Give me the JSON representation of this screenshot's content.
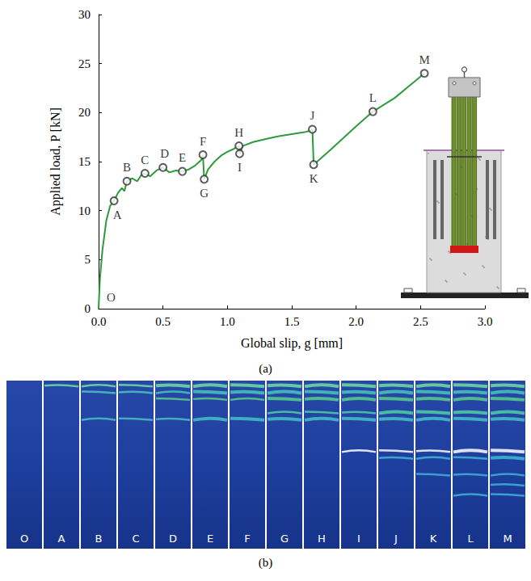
{
  "chart_data": {
    "type": "line",
    "caption": "(a)",
    "xlabel": "Global slip, g [mm]",
    "ylabel": "Applied load, P [kN]",
    "color": "#2e9a3c",
    "grid": false,
    "xlim": [
      0,
      3
    ],
    "ylim": [
      0,
      30
    ],
    "xticks": [
      {
        "value": 0,
        "label": "0.0"
      },
      0.5,
      {
        "value": 1,
        "label": "1.0"
      },
      1.5,
      {
        "value": 2,
        "label": "2.0"
      },
      2.5,
      {
        "value": 3,
        "label": "3.0"
      }
    ],
    "yticks": [
      0,
      5,
      10,
      15,
      20,
      25,
      30
    ],
    "x": [
      0,
      0.01,
      0.03,
      0.06,
      0.09,
      0.12,
      0.15,
      0.18,
      0.2,
      0.22,
      0.26,
      0.3,
      0.33,
      0.36,
      0.4,
      0.45,
      0.5,
      0.55,
      0.6,
      0.65,
      0.7,
      0.75,
      0.8,
      0.81,
      0.82,
      0.85,
      0.9,
      0.95,
      1.0,
      1.05,
      1.09,
      1.095,
      1.12,
      1.2,
      1.3,
      1.4,
      1.5,
      1.6,
      1.65,
      1.66,
      1.67,
      1.8,
      2.0,
      2.13,
      2.3,
      2.53
    ],
    "values": [
      0,
      3,
      6,
      9,
      10.5,
      11,
      11.8,
      12.3,
      12.0,
      13.0,
      13.3,
      13.0,
      13.6,
      13.8,
      13.5,
      14.1,
      14.4,
      13.9,
      14.1,
      14.0,
      14.2,
      14.6,
      15.2,
      15.7,
      13.2,
      14.2,
      15.0,
      15.6,
      16.0,
      16.3,
      16.6,
      15.8,
      16.6,
      17.0,
      17.3,
      17.6,
      17.8,
      18.0,
      18.2,
      18.3,
      14.7,
      16.2,
      18.6,
      20.1,
      21.5,
      24.0
    ],
    "annotations": [
      {
        "text": "O",
        "x": 0,
        "y": 0,
        "marker": "none"
      },
      {
        "text": "A",
        "x": 0.12,
        "y": 11.0,
        "marker": "circle"
      },
      {
        "text": "B",
        "x": 0.22,
        "y": 13.0,
        "marker": "circle"
      },
      {
        "text": "C",
        "x": 0.36,
        "y": 13.8,
        "marker": "circle"
      },
      {
        "text": "D",
        "x": 0.5,
        "y": 14.4,
        "marker": "circle"
      },
      {
        "text": "E",
        "x": 0.65,
        "y": 14.0,
        "marker": "circle"
      },
      {
        "text": "F",
        "x": 0.81,
        "y": 15.7,
        "marker": "circle"
      },
      {
        "text": "G",
        "x": 0.82,
        "y": 13.2,
        "marker": "circle"
      },
      {
        "text": "H",
        "x": 1.09,
        "y": 16.6,
        "marker": "circle"
      },
      {
        "text": "I",
        "x": 1.095,
        "y": 15.8,
        "marker": "circle"
      },
      {
        "text": "J",
        "x": 1.66,
        "y": 18.3,
        "marker": "circle"
      },
      {
        "text": "K",
        "x": 1.67,
        "y": 14.7,
        "marker": "circle"
      },
      {
        "text": "L",
        "x": 2.13,
        "y": 20.1,
        "marker": "circle"
      },
      {
        "text": "M",
        "x": 2.53,
        "y": 24.0,
        "marker": "circle"
      }
    ]
  },
  "image_strip": {
    "caption": "(b)",
    "frames": [
      "O",
      "A",
      "B",
      "C",
      "D",
      "E",
      "F",
      "G",
      "H",
      "I",
      "J",
      "K",
      "L",
      "M"
    ]
  }
}
